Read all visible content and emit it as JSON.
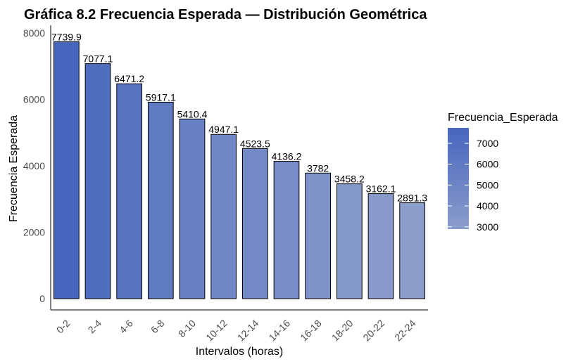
{
  "chart_data": {
    "type": "bar",
    "title": "Gráfica 8.2 Frecuencia Esperada — Distribución Geométrica",
    "xlabel": "Intervalos (horas)",
    "ylabel": "Frecuencia Esperada",
    "categories": [
      "0-2",
      "2-4",
      "4-6",
      "6-8",
      "8-10",
      "10-12",
      "12-14",
      "14-16",
      "16-18",
      "18-20",
      "20-22",
      "22-24"
    ],
    "values": [
      7739.9,
      7077.1,
      6471.2,
      5917.1,
      5410.4,
      4947.1,
      4523.5,
      4136.2,
      3782,
      3458.2,
      3162.1,
      2891.3
    ],
    "value_labels": [
      "7739.9",
      "7077.1",
      "6471.2",
      "5917.1",
      "5410.4",
      "4947.1",
      "4523.5",
      "4136.2",
      "3782",
      "3458.2",
      "3162.1",
      "2891.3"
    ],
    "ylim": [
      0,
      8000
    ],
    "yticks": [
      0,
      2000,
      4000,
      6000,
      8000
    ],
    "grid": false,
    "legend": {
      "title": "Frecuencia_Esperada",
      "position": "right",
      "ticks": [
        3000,
        4000,
        5000,
        6000,
        7000
      ],
      "range": [
        2891.3,
        7739.9
      ],
      "color_low": "#8b9dcb",
      "color_high": "#4766bd"
    },
    "bar_outline_color": "#000000"
  }
}
